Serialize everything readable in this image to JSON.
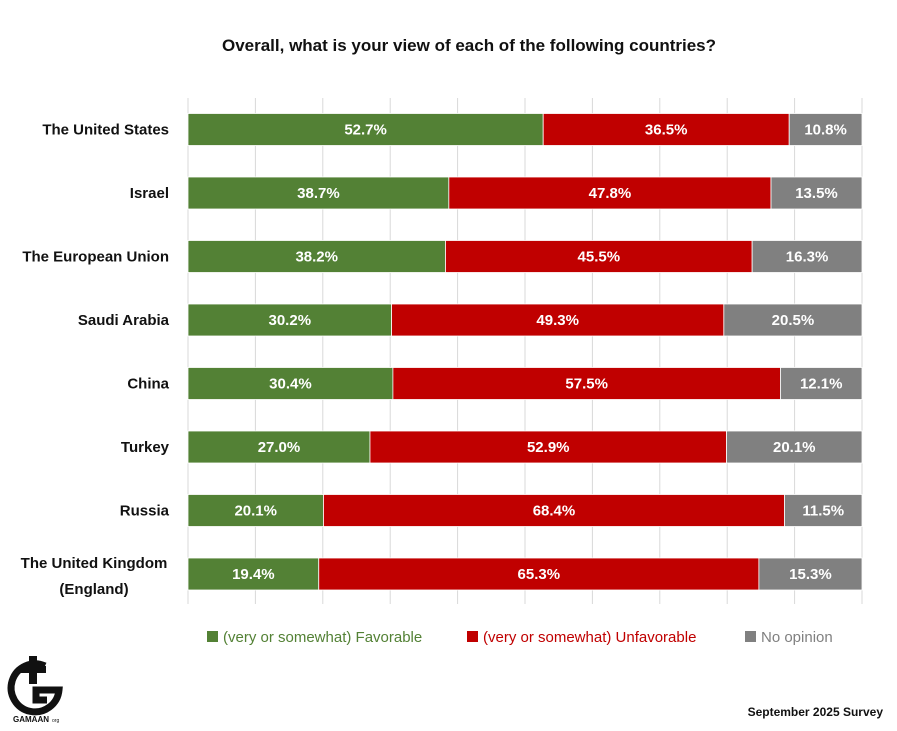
{
  "chart_data": {
    "type": "bar",
    "orientation": "horizontal",
    "stacked": true,
    "title": "Overall, what is your view of each of the following countries?",
    "categories": [
      "The United States",
      "Israel",
      "The European Union",
      "Saudi Arabia",
      "China",
      "Turkey",
      "Russia",
      "The United Kingdom (England)"
    ],
    "series": [
      {
        "name": "(very or somewhat) Favorable",
        "color": "#538135",
        "values": [
          52.7,
          38.7,
          38.2,
          30.2,
          30.4,
          27.0,
          20.1,
          19.4
        ],
        "labels": [
          "52.7%",
          "38.7%",
          "38.2%",
          "30.2%",
          "30.4%",
          "27.0%",
          "20.1%",
          "19.4%"
        ]
      },
      {
        "name": "(very or somewhat) Unfavorable",
        "color": "#C00000",
        "values": [
          36.5,
          47.8,
          45.5,
          49.3,
          57.5,
          52.9,
          68.4,
          65.3
        ],
        "labels": [
          "36.5%",
          "47.8%",
          "45.5%",
          "49.3%",
          "57.5%",
          "52.9%",
          "68.4%",
          "65.3%"
        ]
      },
      {
        "name": "No opinion",
        "color": "#808080",
        "values": [
          10.8,
          13.5,
          16.3,
          20.5,
          12.1,
          20.1,
          11.5,
          15.3
        ],
        "labels": [
          "10.8%",
          "13.5%",
          "16.3%",
          "20.5%",
          "12.1%",
          "20.1%",
          "11.5%",
          "15.3%"
        ]
      }
    ],
    "xlim": [
      0,
      100
    ],
    "grid": true,
    "legend_position": "bottom"
  },
  "footer": {
    "survey_note": "September 2025 Survey"
  },
  "logo": {
    "text": "GAMAAN",
    "suffix": "org"
  }
}
